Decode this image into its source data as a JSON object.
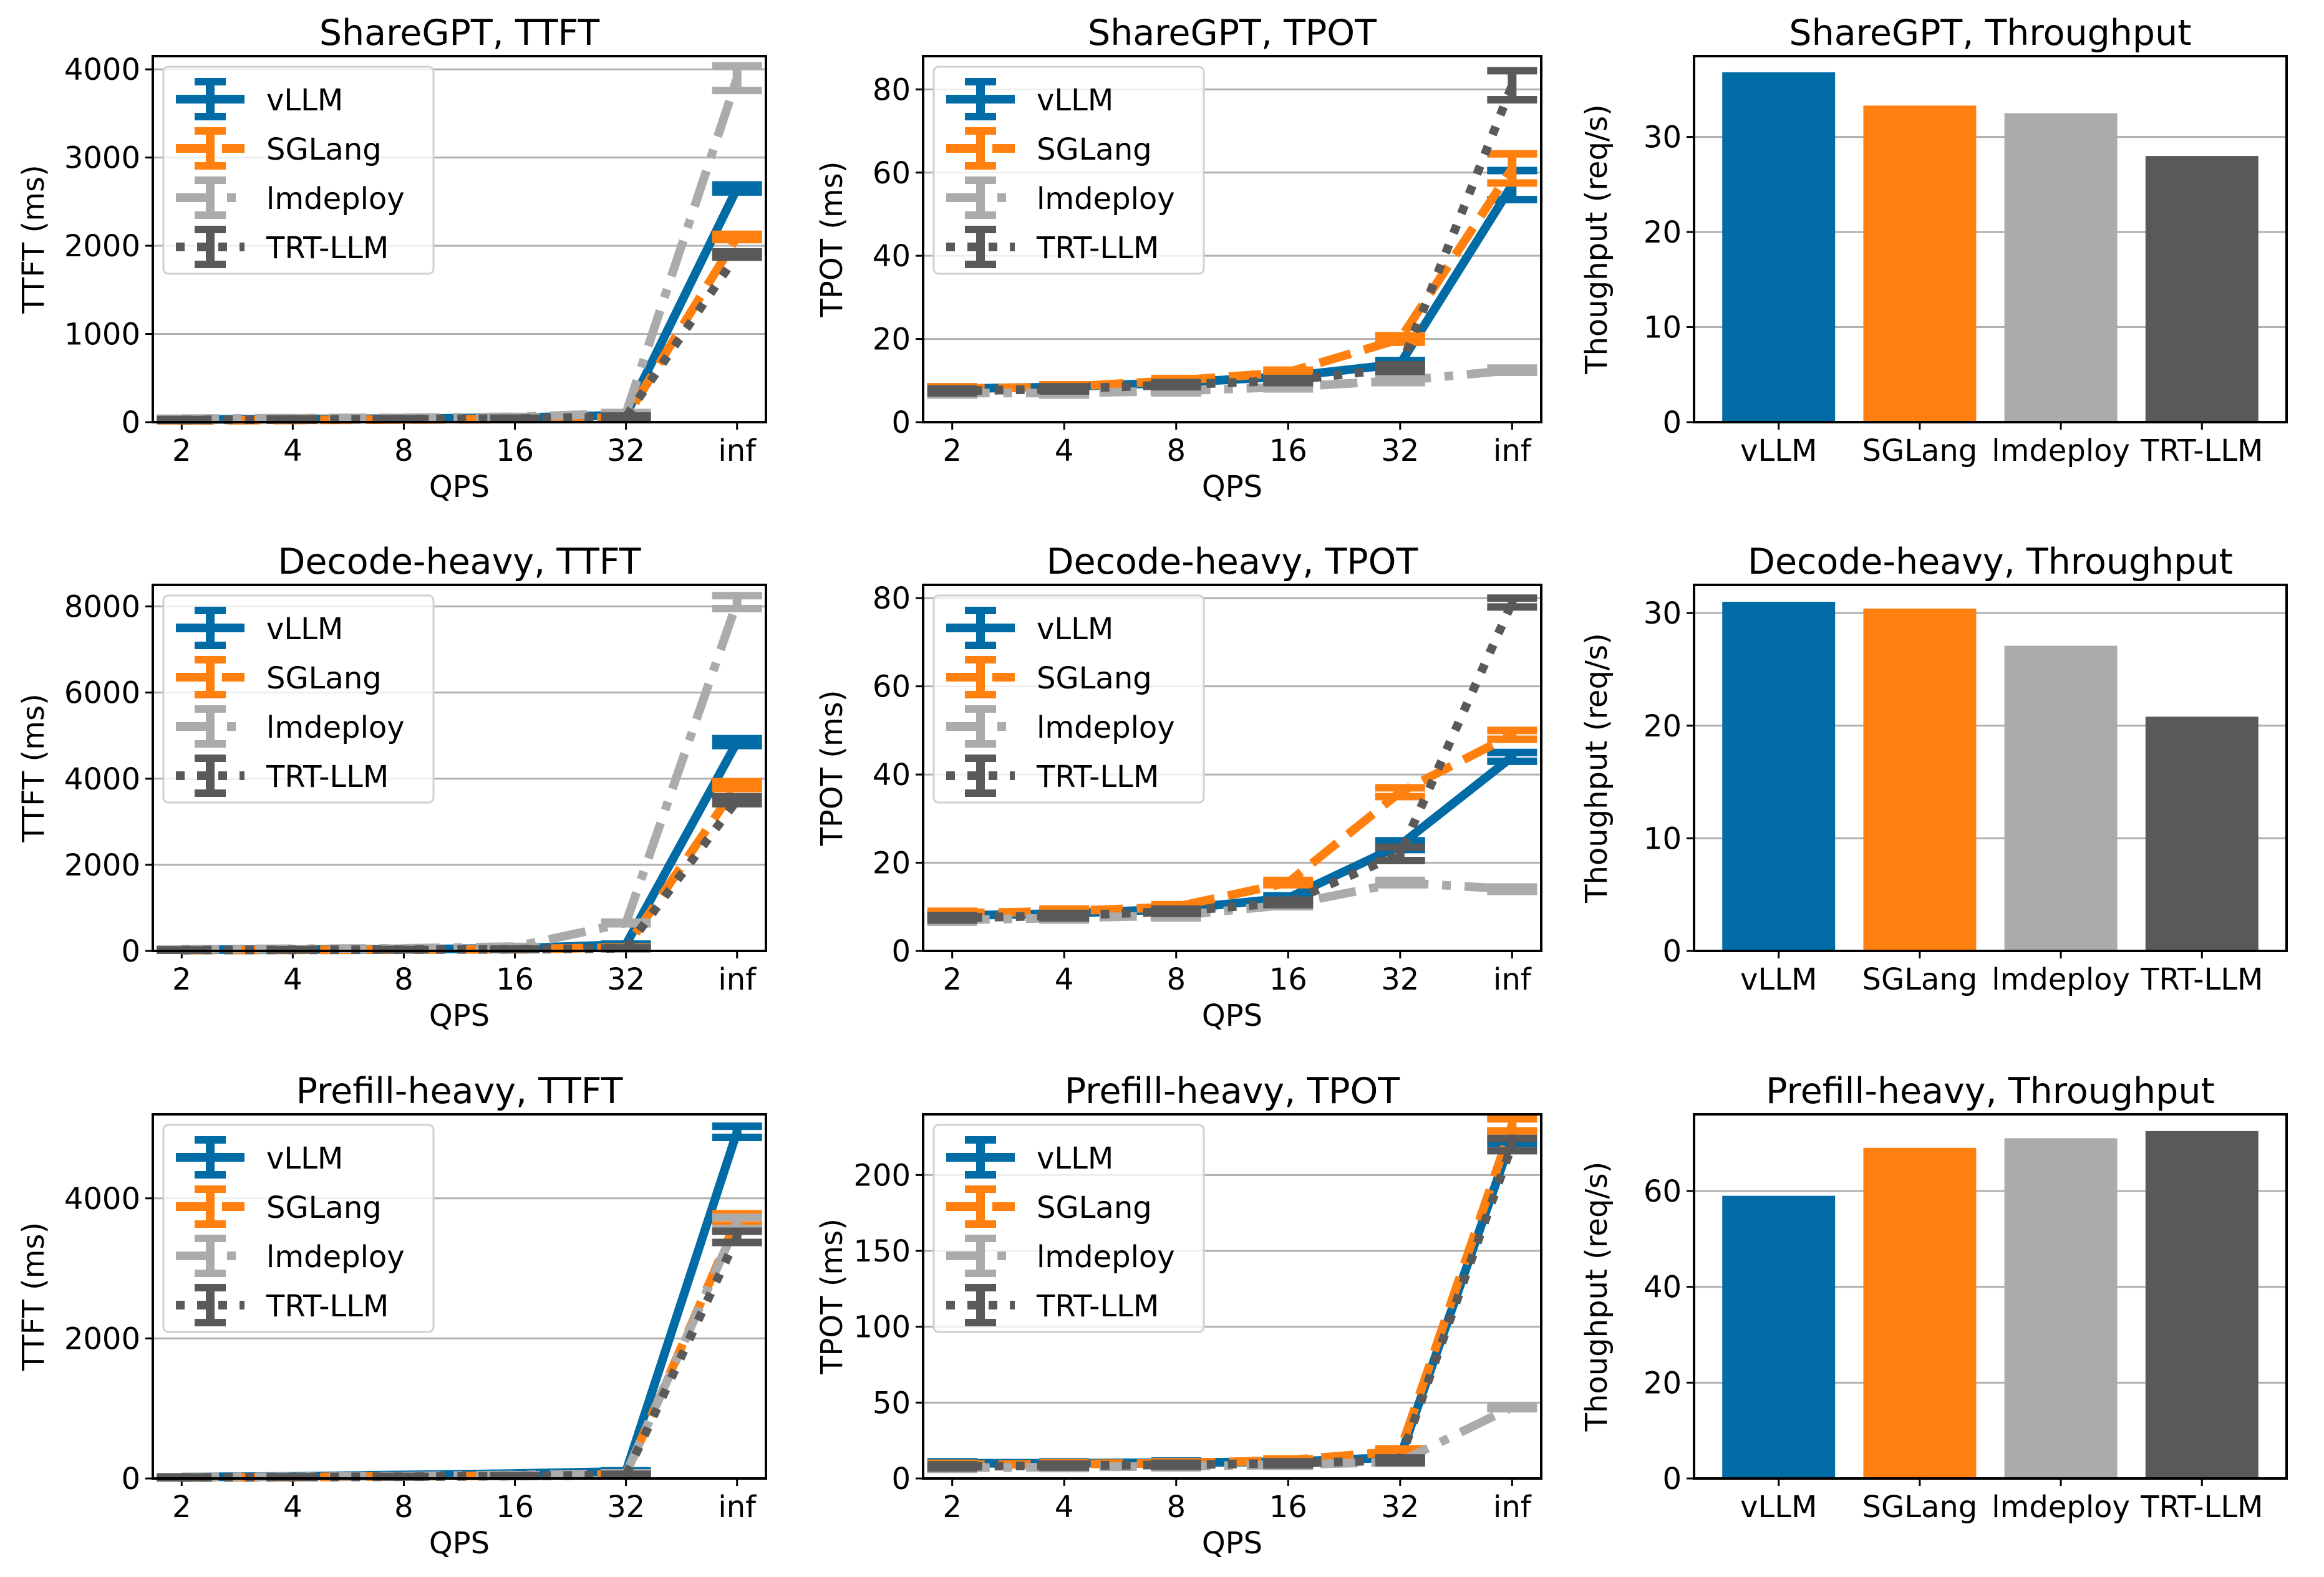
{
  "colors": {
    "vLLM": "#006BA4",
    "SGLang": "#FF800E",
    "lmdeploy": "#ABABAB",
    "TRT-LLM": "#595959"
  },
  "chart_data": [
    {
      "type": "line",
      "title": "ShareGPT, TTFT",
      "xlabel": "QPS",
      "ylabel": "TTFT (ms)",
      "categories": [
        "2",
        "4",
        "8",
        "16",
        "32",
        "inf"
      ],
      "ylim": [
        0,
        4150
      ],
      "yticks": [
        0,
        1000,
        2000,
        3000,
        4000
      ],
      "grid": "y",
      "legend": "top-left",
      "series": [
        {
          "name": "vLLM",
          "style": "solid",
          "values": [
            30,
            35,
            40,
            50,
            80,
            2650
          ],
          "err": [
            5,
            5,
            5,
            5,
            10,
            40
          ]
        },
        {
          "name": "SGLang",
          "style": "dashed",
          "values": [
            20,
            25,
            30,
            35,
            50,
            2100
          ],
          "err": [
            5,
            5,
            5,
            5,
            10,
            30
          ]
        },
        {
          "name": "lmdeploy",
          "style": "dashdot",
          "values": [
            40,
            45,
            50,
            60,
            100,
            3900
          ],
          "err": [
            5,
            5,
            5,
            5,
            10,
            140
          ]
        },
        {
          "name": "TRT-LLM",
          "style": "dotted",
          "values": [
            25,
            30,
            35,
            40,
            60,
            1900
          ],
          "err": [
            5,
            5,
            5,
            5,
            10,
            30
          ]
        }
      ]
    },
    {
      "type": "line",
      "title": "ShareGPT, TPOT",
      "xlabel": "QPS",
      "ylabel": "TPOT (ms)",
      "categories": [
        "2",
        "4",
        "8",
        "16",
        "32",
        "inf"
      ],
      "ylim": [
        0,
        88
      ],
      "yticks": [
        0,
        20,
        40,
        60,
        80
      ],
      "grid": "y",
      "legend": "top-left",
      "series": [
        {
          "name": "vLLM",
          "style": "solid",
          "values": [
            8,
            8.5,
            9.5,
            11,
            14,
            57
          ],
          "err": [
            0.5,
            0.5,
            0.5,
            0.5,
            0.8,
            3.5
          ]
        },
        {
          "name": "SGLang",
          "style": "dashed",
          "values": [
            8,
            8.5,
            10,
            12,
            20,
            61
          ],
          "err": [
            0.5,
            0.5,
            0.5,
            0.5,
            0.8,
            3.5
          ]
        },
        {
          "name": "lmdeploy",
          "style": "dashdot",
          "values": [
            7,
            7,
            7.5,
            8.5,
            10,
            12.5
          ],
          "err": [
            0.5,
            0.5,
            0.5,
            0.5,
            0.5,
            0.5
          ]
        },
        {
          "name": "TRT-LLM",
          "style": "dotted",
          "values": [
            7.5,
            8,
            9,
            10,
            13,
            81
          ],
          "err": [
            0.5,
            0.5,
            0.5,
            0.5,
            0.8,
            3.5
          ]
        }
      ]
    },
    {
      "type": "bar",
      "title": "ShareGPT, Throughput",
      "ylabel": "Thoughput (req/s)",
      "categories": [
        "vLLM",
        "SGLang",
        "lmdeploy",
        "TRT-LLM"
      ],
      "values": [
        36.8,
        33.3,
        32.5,
        28.0
      ],
      "ylim": [
        0,
        38.5
      ],
      "yticks": [
        0,
        10,
        20,
        30
      ],
      "grid": "y"
    },
    {
      "type": "line",
      "title": "Decode-heavy, TTFT",
      "xlabel": "QPS",
      "ylabel": "TTFT (ms)",
      "categories": [
        "2",
        "4",
        "8",
        "16",
        "32",
        "inf"
      ],
      "ylim": [
        0,
        8500
      ],
      "yticks": [
        0,
        2000,
        4000,
        6000,
        8000
      ],
      "grid": "y",
      "legend": "top-left",
      "series": [
        {
          "name": "vLLM",
          "style": "solid",
          "values": [
            30,
            35,
            40,
            60,
            150,
            4850
          ],
          "err": [
            5,
            5,
            5,
            5,
            10,
            80
          ]
        },
        {
          "name": "SGLang",
          "style": "dashed",
          "values": [
            20,
            25,
            30,
            40,
            80,
            3850
          ],
          "err": [
            5,
            5,
            5,
            5,
            10,
            80
          ]
        },
        {
          "name": "lmdeploy",
          "style": "dashdot",
          "values": [
            40,
            50,
            60,
            100,
            650,
            8100
          ],
          "err": [
            5,
            5,
            5,
            5,
            20,
            150
          ]
        },
        {
          "name": "TRT-LLM",
          "style": "dotted",
          "values": [
            20,
            25,
            30,
            40,
            60,
            3500
          ],
          "err": [
            5,
            5,
            5,
            5,
            10,
            80
          ]
        }
      ]
    },
    {
      "type": "line",
      "title": "Decode-heavy, TPOT",
      "xlabel": "QPS",
      "ylabel": "TPOT (ms)",
      "categories": [
        "2",
        "4",
        "8",
        "16",
        "32",
        "inf"
      ],
      "ylim": [
        0,
        83
      ],
      "yticks": [
        0,
        20,
        40,
        60,
        80
      ],
      "grid": "y",
      "legend": "top-left",
      "series": [
        {
          "name": "vLLM",
          "style": "solid",
          "values": [
            8,
            8.5,
            9.5,
            12,
            24,
            44
          ],
          "err": [
            0.5,
            0.5,
            0.5,
            0.5,
            1,
            1
          ]
        },
        {
          "name": "SGLang",
          "style": "dashed",
          "values": [
            8.5,
            9,
            10,
            15.5,
            36,
            49
          ],
          "err": [
            0.5,
            0.5,
            0.5,
            0.5,
            1,
            1
          ]
        },
        {
          "name": "lmdeploy",
          "style": "dashdot",
          "values": [
            7,
            7.5,
            8,
            10.5,
            15.5,
            14
          ],
          "err": [
            0.5,
            0.5,
            0.5,
            0.5,
            0.5,
            0.5
          ]
        },
        {
          "name": "TRT-LLM",
          "style": "dotted",
          "values": [
            7.5,
            8,
            9,
            11,
            22,
            79
          ],
          "err": [
            0.5,
            0.5,
            0.5,
            0.5,
            1.5,
            1
          ]
        }
      ]
    },
    {
      "type": "bar",
      "title": "Decode-heavy, Throughput",
      "ylabel": "Thoughput (req/s)",
      "categories": [
        "vLLM",
        "SGLang",
        "lmdeploy",
        "TRT-LLM"
      ],
      "values": [
        31.0,
        30.4,
        27.1,
        20.8
      ],
      "ylim": [
        0,
        32.5
      ],
      "yticks": [
        0,
        10,
        20,
        30
      ],
      "grid": "y"
    },
    {
      "type": "line",
      "title": "Prefill-heavy, TTFT",
      "xlabel": "QPS",
      "ylabel": "TTFT (ms)",
      "categories": [
        "2",
        "4",
        "8",
        "16",
        "32",
        "inf"
      ],
      "ylim": [
        0,
        5200
      ],
      "yticks": [
        0,
        2000,
        4000
      ],
      "grid": "y",
      "legend": "top-left",
      "series": [
        {
          "name": "vLLM",
          "style": "solid",
          "values": [
            20,
            30,
            50,
            70,
            100,
            4950
          ],
          "err": [
            5,
            5,
            5,
            5,
            10,
            80
          ]
        },
        {
          "name": "SGLang",
          "style": "dashed",
          "values": [
            15,
            20,
            30,
            40,
            60,
            3700
          ],
          "err": [
            5,
            5,
            5,
            5,
            10,
            80
          ]
        },
        {
          "name": "lmdeploy",
          "style": "dashdot",
          "values": [
            20,
            25,
            35,
            50,
            70,
            3650
          ],
          "err": [
            5,
            5,
            5,
            5,
            10,
            80
          ]
        },
        {
          "name": "TRT-LLM",
          "style": "dotted",
          "values": [
            15,
            20,
            25,
            35,
            50,
            3450
          ],
          "err": [
            5,
            5,
            5,
            5,
            10,
            80
          ]
        }
      ]
    },
    {
      "type": "line",
      "title": "Prefill-heavy, TPOT",
      "xlabel": "QPS",
      "ylabel": "TPOT (ms)",
      "categories": [
        "2",
        "4",
        "8",
        "16",
        "32",
        "inf"
      ],
      "ylim": [
        0,
        240
      ],
      "yticks": [
        0,
        50,
        100,
        150,
        200
      ],
      "grid": "y",
      "legend": "top-left",
      "series": [
        {
          "name": "vLLM",
          "style": "solid",
          "values": [
            10,
            10,
            10.5,
            11,
            14,
            225
          ],
          "err": [
            1,
            1,
            1,
            1,
            1.5,
            4
          ]
        },
        {
          "name": "SGLang",
          "style": "dashed",
          "values": [
            9,
            9.5,
            10,
            12,
            18,
            233
          ],
          "err": [
            1,
            1,
            1,
            1,
            1.5,
            4
          ]
        },
        {
          "name": "lmdeploy",
          "style": "dashdot",
          "values": [
            7,
            7.5,
            8,
            9,
            11,
            47
          ],
          "err": [
            1,
            1,
            1,
            1,
            1,
            1
          ]
        },
        {
          "name": "TRT-LLM",
          "style": "dotted",
          "values": [
            8,
            8.5,
            9,
            10,
            12,
            220
          ],
          "err": [
            1,
            1,
            1,
            1,
            1.5,
            4
          ]
        }
      ]
    },
    {
      "type": "bar",
      "title": "Prefill-heavy, Throughput",
      "ylabel": "Thoughput (req/s)",
      "categories": [
        "vLLM",
        "SGLang",
        "lmdeploy",
        "TRT-LLM"
      ],
      "values": [
        59,
        69,
        71,
        72.5
      ],
      "ylim": [
        0,
        76
      ],
      "yticks": [
        0,
        20,
        40,
        60
      ],
      "grid": "y"
    }
  ]
}
